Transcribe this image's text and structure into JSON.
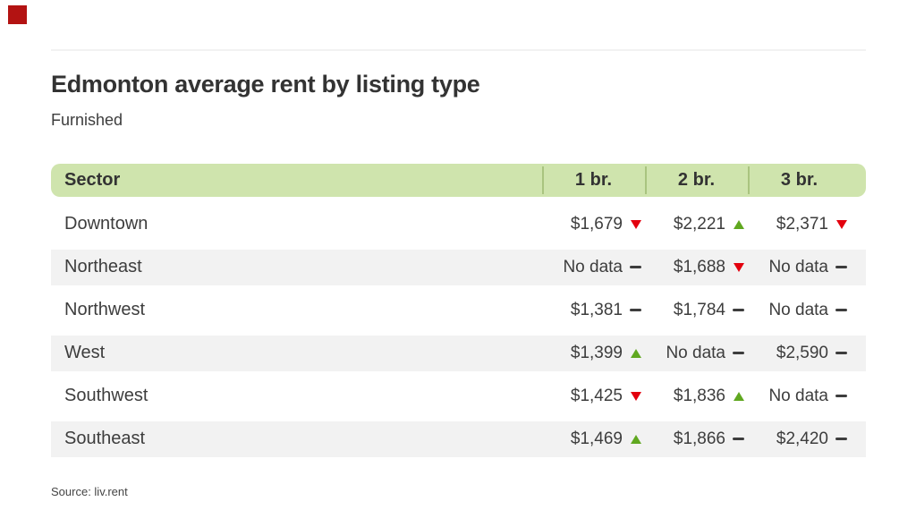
{
  "badge": {
    "color": "#b31312"
  },
  "header": {
    "title": "Edmonton average rent by listing type",
    "subtitle": "Furnished"
  },
  "table": {
    "columns": [
      "Sector",
      "1 br.",
      "2 br.",
      "3 br."
    ],
    "rows": [
      {
        "sector": "Downtown",
        "values": [
          {
            "text": "$1,679",
            "trend": "down"
          },
          {
            "text": "$2,221",
            "trend": "up"
          },
          {
            "text": "$2,371",
            "trend": "down"
          }
        ]
      },
      {
        "sector": "Northeast",
        "values": [
          {
            "text": "No data",
            "trend": "flat"
          },
          {
            "text": "$1,688",
            "trend": "down"
          },
          {
            "text": "No data",
            "trend": "flat"
          }
        ]
      },
      {
        "sector": "Northwest",
        "values": [
          {
            "text": "$1,381",
            "trend": "flat"
          },
          {
            "text": "$1,784",
            "trend": "flat"
          },
          {
            "text": "No data",
            "trend": "flat"
          }
        ]
      },
      {
        "sector": "West",
        "values": [
          {
            "text": "$1,399",
            "trend": "up"
          },
          {
            "text": "No data",
            "trend": "flat"
          },
          {
            "text": "$2,590",
            "trend": "flat"
          }
        ]
      },
      {
        "sector": "Southwest",
        "values": [
          {
            "text": "$1,425",
            "trend": "down"
          },
          {
            "text": "$1,836",
            "trend": "up"
          },
          {
            "text": "No data",
            "trend": "flat"
          }
        ]
      },
      {
        "sector": "Southeast",
        "values": [
          {
            "text": "$1,469",
            "trend": "up"
          },
          {
            "text": "$1,866",
            "trend": "flat"
          },
          {
            "text": "$2,420",
            "trend": "flat"
          }
        ]
      }
    ]
  },
  "source": "Source: liv.rent",
  "colors": {
    "header_bg": "#cfe4ad",
    "header_divider": "#a9c47f",
    "stripe_bg": "#f2f2f2",
    "trend_up": "#60a820",
    "trend_down": "#e3000e",
    "trend_flat": "#3d3d3d",
    "text": "#3d3d3d",
    "title": "#333333"
  },
  "chart_data": {
    "type": "table",
    "title": "Edmonton average rent by listing type",
    "subtitle": "Furnished",
    "columns": [
      "Sector",
      "1 br.",
      "2 br.",
      "3 br."
    ],
    "rows": [
      [
        "Downtown",
        "$1,679 down",
        "$2,221 up",
        "$2,371 down"
      ],
      [
        "Northeast",
        "No data flat",
        "$1,688 down",
        "No data flat"
      ],
      [
        "Northwest",
        "$1,381 flat",
        "$1,784 flat",
        "No data flat"
      ],
      [
        "West",
        "$1,399 up",
        "No data flat",
        "$2,590 flat"
      ],
      [
        "Southwest",
        "$1,425 down",
        "$1,836 up",
        "No data flat"
      ],
      [
        "Southeast",
        "$1,469 up",
        "$1,866 flat",
        "$2,420 flat"
      ]
    ],
    "legend": "triangle-up = increase, triangle-down = decrease, dash = no change / no data",
    "source": "Source: liv.rent"
  }
}
